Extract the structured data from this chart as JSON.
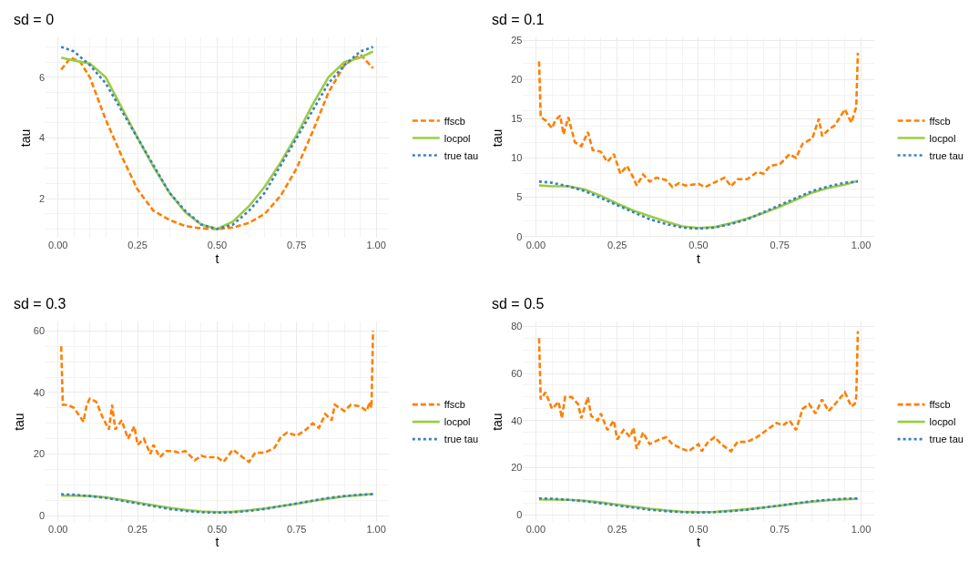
{
  "chart_data": [
    {
      "type": "line",
      "title": "sd = 0",
      "xlabel": "t",
      "ylabel": "tau",
      "xlim": [
        -0.039,
        1.039
      ],
      "xticks": [
        {
          "value": 0,
          "label": "0.00"
        },
        {
          "value": 0.25,
          "label": "0.25"
        },
        {
          "value": 0.5,
          "label": "0.50"
        },
        {
          "value": 0.75,
          "label": "0.75"
        },
        {
          "value": 1,
          "label": "1.00"
        }
      ],
      "ylim": [
        0.7,
        7.3
      ],
      "yticks": [
        2,
        4,
        6
      ],
      "grid": true,
      "legend": "right",
      "series": [
        {
          "name": "ffscb",
          "color": "#ff7f00",
          "line_style": "dashed",
          "x": [
            0.01,
            0.04,
            0.07,
            0.1,
            0.15,
            0.2,
            0.25,
            0.3,
            0.35,
            0.4,
            0.45,
            0.5,
            0.55,
            0.6,
            0.65,
            0.7,
            0.75,
            0.8,
            0.85,
            0.9,
            0.95,
            0.99
          ],
          "values": [
            6.25,
            6.65,
            6.5,
            6.0,
            4.6,
            3.4,
            2.3,
            1.6,
            1.3,
            1.1,
            1.02,
            1.0,
            1.05,
            1.2,
            1.5,
            2.1,
            3.0,
            4.2,
            5.5,
            6.4,
            6.75,
            6.3
          ]
        },
        {
          "name": "locpol",
          "color": "#9acd46",
          "line_style": "solid",
          "x": [
            0.01,
            0.05,
            0.1,
            0.15,
            0.2,
            0.25,
            0.3,
            0.35,
            0.4,
            0.45,
            0.5,
            0.55,
            0.6,
            0.65,
            0.7,
            0.75,
            0.8,
            0.85,
            0.9,
            0.95,
            0.99
          ],
          "values": [
            6.65,
            6.55,
            6.45,
            6.0,
            5.0,
            4.0,
            3.05,
            2.2,
            1.55,
            1.15,
            1.0,
            1.25,
            1.75,
            2.4,
            3.2,
            4.1,
            5.1,
            6.0,
            6.5,
            6.65,
            6.85
          ]
        },
        {
          "name": "true tau",
          "color": "#3a7fc0",
          "line_style": "dotted",
          "x": [
            0.01,
            0.05,
            0.1,
            0.15,
            0.2,
            0.25,
            0.3,
            0.35,
            0.4,
            0.45,
            0.5,
            0.55,
            0.6,
            0.65,
            0.7,
            0.75,
            0.8,
            0.85,
            0.9,
            0.95,
            0.99
          ],
          "values": [
            7.0,
            6.85,
            6.4,
            5.8,
            4.9,
            4.0,
            3.1,
            2.2,
            1.6,
            1.15,
            1.0,
            1.15,
            1.6,
            2.2,
            3.1,
            4.0,
            4.9,
            5.8,
            6.4,
            6.85,
            7.0
          ]
        }
      ]
    },
    {
      "type": "line",
      "title": "sd = 0.1",
      "xlabel": "t",
      "ylabel": "tau",
      "xlim": [
        -0.039,
        1.039
      ],
      "xticks": [
        {
          "value": 0,
          "label": "0.00"
        },
        {
          "value": 0.25,
          "label": "0.25"
        },
        {
          "value": 0.5,
          "label": "0.50"
        },
        {
          "value": 0.75,
          "label": "0.75"
        },
        {
          "value": 1,
          "label": "1.00"
        }
      ],
      "ylim": [
        -0.2,
        25.3
      ],
      "yticks": [
        0,
        5,
        10,
        15,
        20,
        25
      ],
      "grid": true,
      "legend": "right",
      "series": [
        {
          "name": "ffscb",
          "color": "#ff7f00",
          "line_style": "dashed",
          "x": [
            0.01,
            0.015,
            0.03,
            0.05,
            0.06,
            0.075,
            0.085,
            0.1,
            0.12,
            0.14,
            0.16,
            0.175,
            0.2,
            0.22,
            0.24,
            0.26,
            0.28,
            0.3,
            0.31,
            0.33,
            0.35,
            0.37,
            0.4,
            0.42,
            0.44,
            0.46,
            0.5,
            0.52,
            0.55,
            0.58,
            0.6,
            0.62,
            0.65,
            0.68,
            0.7,
            0.72,
            0.75,
            0.78,
            0.8,
            0.82,
            0.85,
            0.87,
            0.88,
            0.9,
            0.92,
            0.95,
            0.97,
            0.985,
            0.99
          ],
          "values": [
            22.3,
            15.2,
            14.8,
            13.8,
            14.8,
            15.4,
            13.0,
            15.2,
            12.0,
            11.5,
            13.3,
            11.0,
            10.8,
            9.5,
            10.5,
            8.0,
            9.0,
            7.5,
            6.5,
            7.9,
            7.0,
            7.5,
            7.2,
            6.3,
            6.8,
            6.5,
            6.7,
            6.3,
            6.9,
            7.5,
            6.4,
            7.3,
            7.3,
            8.2,
            8.0,
            9.0,
            9.2,
            10.5,
            10.0,
            11.8,
            12.5,
            15.0,
            12.8,
            13.6,
            14.2,
            16.2,
            14.5,
            16.5,
            23.4
          ]
        },
        {
          "name": "locpol",
          "color": "#9acd46",
          "line_style": "solid",
          "x": [
            0.01,
            0.05,
            0.1,
            0.15,
            0.2,
            0.25,
            0.3,
            0.35,
            0.4,
            0.45,
            0.5,
            0.55,
            0.6,
            0.65,
            0.7,
            0.75,
            0.8,
            0.85,
            0.9,
            0.95,
            0.99
          ],
          "values": [
            6.5,
            6.4,
            6.4,
            6.0,
            5.2,
            4.2,
            3.3,
            2.6,
            1.9,
            1.3,
            1.1,
            1.2,
            1.7,
            2.3,
            3.0,
            3.8,
            4.7,
            5.6,
            6.2,
            6.6,
            7.1
          ]
        },
        {
          "name": "true tau",
          "color": "#3a7fc0",
          "line_style": "dotted",
          "x": [
            0.01,
            0.05,
            0.1,
            0.15,
            0.2,
            0.25,
            0.3,
            0.35,
            0.4,
            0.45,
            0.5,
            0.55,
            0.6,
            0.65,
            0.7,
            0.75,
            0.8,
            0.85,
            0.9,
            0.95,
            0.99
          ],
          "values": [
            7.0,
            6.85,
            6.4,
            5.8,
            4.9,
            4.0,
            3.1,
            2.2,
            1.6,
            1.15,
            1.0,
            1.15,
            1.6,
            2.2,
            3.1,
            4.0,
            4.9,
            5.8,
            6.4,
            6.85,
            7.0
          ]
        }
      ]
    },
    {
      "type": "line",
      "title": "sd = 0.3",
      "xlabel": "t",
      "ylabel": "tau",
      "xlim": [
        -0.039,
        1.039
      ],
      "xticks": [
        {
          "value": 0,
          "label": "0.00"
        },
        {
          "value": 0.25,
          "label": "0.25"
        },
        {
          "value": 0.5,
          "label": "0.50"
        },
        {
          "value": 0.75,
          "label": "0.75"
        },
        {
          "value": 1,
          "label": "1.00"
        }
      ],
      "ylim": [
        -2,
        63
      ],
      "yticks": [
        0,
        20,
        40,
        60
      ],
      "grid": true,
      "legend": "right",
      "series": [
        {
          "name": "ffscb",
          "color": "#ff7f00",
          "line_style": "dashed",
          "x": [
            0.01,
            0.015,
            0.03,
            0.05,
            0.07,
            0.08,
            0.09,
            0.1,
            0.12,
            0.14,
            0.16,
            0.17,
            0.18,
            0.2,
            0.22,
            0.24,
            0.25,
            0.27,
            0.29,
            0.3,
            0.32,
            0.34,
            0.36,
            0.38,
            0.4,
            0.43,
            0.45,
            0.47,
            0.5,
            0.52,
            0.55,
            0.58,
            0.6,
            0.62,
            0.65,
            0.68,
            0.7,
            0.72,
            0.75,
            0.78,
            0.8,
            0.82,
            0.84,
            0.86,
            0.87,
            0.9,
            0.92,
            0.95,
            0.97,
            0.98,
            0.985,
            0.99
          ],
          "values": [
            55,
            36,
            36,
            35,
            32,
            30.5,
            36,
            38,
            37,
            32,
            28,
            36,
            28,
            31,
            25,
            29,
            23,
            25,
            20,
            23,
            19,
            21,
            21,
            20.5,
            21,
            18,
            19.5,
            19,
            19,
            17.5,
            21.5,
            19,
            17.5,
            20.5,
            20.5,
            22,
            25.5,
            27,
            26,
            28,
            30,
            28.5,
            33,
            31,
            36,
            34,
            36,
            35.5,
            34,
            37,
            35,
            60
          ]
        },
        {
          "name": "locpol",
          "color": "#9acd46",
          "line_style": "solid",
          "x": [
            0.01,
            0.05,
            0.1,
            0.15,
            0.2,
            0.25,
            0.3,
            0.35,
            0.4,
            0.45,
            0.5,
            0.55,
            0.6,
            0.65,
            0.7,
            0.75,
            0.8,
            0.85,
            0.9,
            0.95,
            0.99
          ],
          "values": [
            6.5,
            6.5,
            6.4,
            6.0,
            5.2,
            4.3,
            3.4,
            2.6,
            1.9,
            1.4,
            1.2,
            1.3,
            1.8,
            2.4,
            3.1,
            3.9,
            4.8,
            5.6,
            6.3,
            6.7,
            7.1
          ]
        },
        {
          "name": "true tau",
          "color": "#3a7fc0",
          "line_style": "dotted",
          "x": [
            0.01,
            0.05,
            0.1,
            0.15,
            0.2,
            0.25,
            0.3,
            0.35,
            0.4,
            0.45,
            0.5,
            0.55,
            0.6,
            0.65,
            0.7,
            0.75,
            0.8,
            0.85,
            0.9,
            0.95,
            0.99
          ],
          "values": [
            7.0,
            6.85,
            6.4,
            5.8,
            4.9,
            4.0,
            3.1,
            2.2,
            1.6,
            1.15,
            1.0,
            1.15,
            1.6,
            2.2,
            3.1,
            4.0,
            4.9,
            5.8,
            6.4,
            6.85,
            7.0
          ]
        }
      ]
    },
    {
      "type": "line",
      "title": "sd = 0.5",
      "xlabel": "t",
      "ylabel": "tau",
      "xlim": [
        -0.039,
        1.039
      ],
      "xticks": [
        {
          "value": 0,
          "label": "0.00"
        },
        {
          "value": 0.25,
          "label": "0.25"
        },
        {
          "value": 0.5,
          "label": "0.50"
        },
        {
          "value": 0.75,
          "label": "0.75"
        },
        {
          "value": 1,
          "label": "1.00"
        }
      ],
      "ylim": [
        -3,
        82
      ],
      "yticks": [
        0,
        20,
        40,
        60,
        80
      ],
      "grid": true,
      "legend": "right",
      "series": [
        {
          "name": "ffscb",
          "color": "#ff7f00",
          "line_style": "dashed",
          "x": [
            0.01,
            0.015,
            0.03,
            0.05,
            0.07,
            0.08,
            0.09,
            0.11,
            0.13,
            0.14,
            0.16,
            0.17,
            0.19,
            0.2,
            0.22,
            0.24,
            0.25,
            0.27,
            0.29,
            0.3,
            0.31,
            0.33,
            0.35,
            0.38,
            0.4,
            0.42,
            0.45,
            0.47,
            0.5,
            0.51,
            0.53,
            0.55,
            0.57,
            0.6,
            0.62,
            0.65,
            0.68,
            0.7,
            0.72,
            0.74,
            0.76,
            0.78,
            0.8,
            0.82,
            0.84,
            0.86,
            0.88,
            0.9,
            0.92,
            0.95,
            0.97,
            0.98,
            0.985,
            0.99
          ],
          "values": [
            75,
            49,
            52,
            45,
            48,
            41,
            50,
            50,
            47,
            41,
            50,
            42,
            40,
            43,
            36,
            40,
            32,
            36,
            33,
            37,
            28,
            35,
            30,
            32,
            33,
            30,
            28,
            27,
            30,
            27,
            31,
            33,
            30,
            27,
            31,
            31,
            33,
            35,
            37,
            39,
            38,
            40,
            36,
            45,
            47,
            43,
            49,
            44,
            47,
            52,
            46,
            47,
            50,
            78
          ]
        },
        {
          "name": "locpol",
          "color": "#9acd46",
          "line_style": "solid",
          "x": [
            0.01,
            0.05,
            0.1,
            0.15,
            0.2,
            0.25,
            0.3,
            0.35,
            0.4,
            0.45,
            0.5,
            0.55,
            0.6,
            0.65,
            0.7,
            0.75,
            0.8,
            0.85,
            0.9,
            0.95,
            0.99
          ],
          "values": [
            6.5,
            6.5,
            6.4,
            6.0,
            5.3,
            4.4,
            3.5,
            2.6,
            1.9,
            1.4,
            1.2,
            1.3,
            1.8,
            2.4,
            3.1,
            3.9,
            4.8,
            5.6,
            6.2,
            6.6,
            6.8
          ]
        },
        {
          "name": "true tau",
          "color": "#3a7fc0",
          "line_style": "dotted",
          "x": [
            0.01,
            0.05,
            0.1,
            0.15,
            0.2,
            0.25,
            0.3,
            0.35,
            0.4,
            0.45,
            0.5,
            0.55,
            0.6,
            0.65,
            0.7,
            0.75,
            0.8,
            0.85,
            0.9,
            0.95,
            0.99
          ],
          "values": [
            7.0,
            6.85,
            6.4,
            5.8,
            4.9,
            4.0,
            3.1,
            2.2,
            1.6,
            1.15,
            1.0,
            1.15,
            1.6,
            2.2,
            3.1,
            4.0,
            4.9,
            5.8,
            6.4,
            6.85,
            7.0
          ]
        }
      ]
    }
  ]
}
